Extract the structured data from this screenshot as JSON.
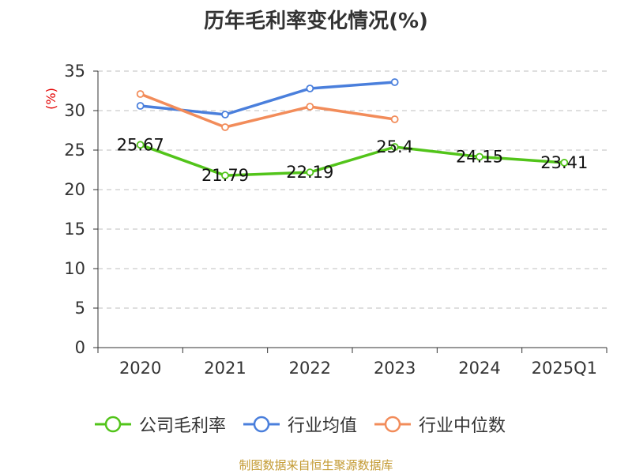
{
  "title": "历年毛利率变化情况(%)",
  "source": "制图数据来自恒生聚源数据库",
  "colors": {
    "title": "#333333",
    "grid": "#bfbfbf",
    "axis": "#333333",
    "ylabel": "#e30000",
    "source": "#c39a32"
  },
  "chart_data": {
    "type": "line",
    "categories": [
      "2020",
      "2021",
      "2022",
      "2023",
      "2024",
      "2025Q1"
    ],
    "ylabel": "(%)",
    "ylim": [
      0,
      35
    ],
    "yticks": [
      0,
      5,
      10,
      15,
      20,
      25,
      30,
      35
    ],
    "grid": true,
    "legend_position": "bottom",
    "series": [
      {
        "name": "公司毛利率",
        "color": "#52c41a",
        "values": [
          25.67,
          21.79,
          22.19,
          25.4,
          24.15,
          23.41
        ],
        "labels": [
          "25.67",
          "21.79",
          "22.19",
          "25.4",
          "24.15",
          "23.41"
        ]
      },
      {
        "name": "行业均值",
        "color": "#4a7fdc",
        "values": [
          30.6,
          29.5,
          32.8,
          33.6,
          null,
          null
        ]
      },
      {
        "name": "行业中位数",
        "color": "#f28c5a",
        "values": [
          32.1,
          27.9,
          30.5,
          28.9,
          null,
          null
        ]
      }
    ]
  }
}
